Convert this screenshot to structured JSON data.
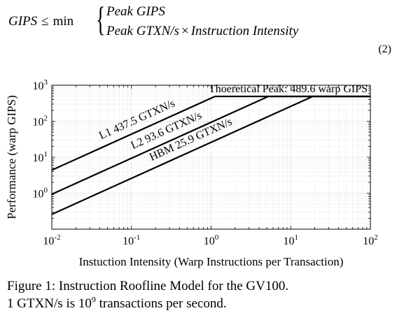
{
  "equation": {
    "lhs": "GIPS",
    "relation": "≤",
    "operator": "min",
    "case1": "Peak GIPS",
    "case2_left": "Peak GTXN/s",
    "case2_op": "×",
    "case2_right": "Instruction Intensity",
    "number": "(2)"
  },
  "chart_data": {
    "type": "line",
    "xscale": "log",
    "yscale": "log",
    "xlim": [
      0.01,
      100
    ],
    "ylim": [
      0.1,
      1000
    ],
    "xlabel": "Instuction Intensity (Warp Instructions per Transaction)",
    "ylabel": "Performance (warp GIPS)",
    "x_ticks": [
      {
        "base": "10",
        "exp": "-2"
      },
      {
        "base": "10",
        "exp": "-1"
      },
      {
        "base": "10",
        "exp": "0"
      },
      {
        "base": "10",
        "exp": "1"
      },
      {
        "base": "10",
        "exp": "2"
      }
    ],
    "y_ticks": [
      {
        "base": "10",
        "exp": "0"
      },
      {
        "base": "10",
        "exp": "1"
      },
      {
        "base": "10",
        "exp": "2"
      },
      {
        "base": "10",
        "exp": "3"
      }
    ],
    "peak_gips": 489.6,
    "peak_label": "Thoeretical Peak: 489.6 warp GIPS",
    "grid": true,
    "series": [
      {
        "name": "L1 437.5 GTXN/s",
        "bandwidth": 437.5,
        "x": [
          0.01,
          1.1191,
          100
        ],
        "y": [
          4.375,
          489.6,
          489.6
        ]
      },
      {
        "name": "L2 93.6 GTXN/s",
        "bandwidth": 93.6,
        "x": [
          0.01,
          5.2308,
          100
        ],
        "y": [
          0.936,
          489.6,
          489.6
        ]
      },
      {
        "name": "HBM 25.9 GTXN/s",
        "bandwidth": 25.9,
        "x": [
          0.01,
          18.9035,
          100
        ],
        "y": [
          0.259,
          489.6,
          489.6
        ]
      }
    ]
  },
  "caption": {
    "line1": "Figure 1: Instruction Roofline Model for the GV100.",
    "line2_prefix": "1 GTXN/s is 10",
    "line2_exp": "9",
    "line2_suffix": " transactions per second."
  }
}
